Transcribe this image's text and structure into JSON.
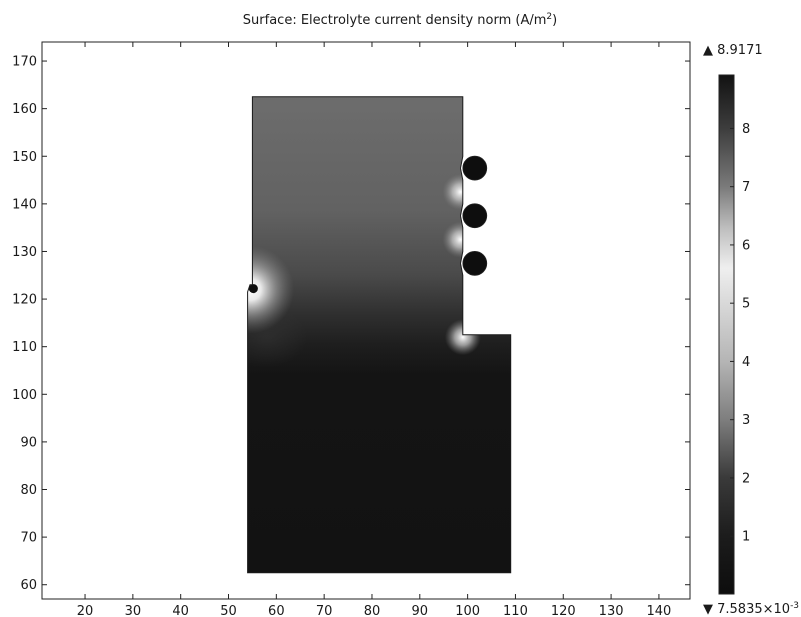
{
  "chart_data": {
    "type": "heatmap",
    "title": "Surface: Electrolyte current density norm (A/m",
    "title_sup": "2",
    "title_tail": ")",
    "x_ticks": [
      20,
      30,
      40,
      50,
      60,
      70,
      80,
      90,
      100,
      110,
      120,
      130,
      140
    ],
    "y_ticks": [
      60,
      70,
      80,
      90,
      100,
      110,
      120,
      130,
      140,
      150,
      160,
      170
    ],
    "xlim": [
      11,
      146.5
    ],
    "ylim": [
      57,
      174
    ],
    "grid": false,
    "colormap": "grayscale",
    "colorbar": {
      "range": [
        0.0075835,
        8.9171
      ],
      "ticks": [
        1,
        2,
        3,
        4,
        5,
        6,
        7,
        8
      ],
      "max_label": "8.9171",
      "min_label_mantissa": "7.5835×10",
      "min_label_exp": "-3",
      "stops": [
        {
          "value": 0.0,
          "color": "#0d0d0d"
        },
        {
          "value": 1.0,
          "color": "#1c1c1c"
        },
        {
          "value": 2.0,
          "color": "#3a3a3a"
        },
        {
          "value": 3.0,
          "color": "#7e7e7e"
        },
        {
          "value": 4.0,
          "color": "#b5b5b5"
        },
        {
          "value": 5.0,
          "color": "#d9d9d9"
        },
        {
          "value": 5.6,
          "color": "#efefef"
        },
        {
          "value": 6.3,
          "color": "#bdbdbd"
        },
        {
          "value": 7.0,
          "color": "#7a7a7a"
        },
        {
          "value": 8.0,
          "color": "#3d3d3d"
        },
        {
          "value": 8.9171,
          "color": "#121212"
        }
      ]
    },
    "geometry_outline": [
      [
        55,
        162.5
      ],
      [
        99,
        162.5
      ],
      [
        99,
        150
      ],
      [
        98.5,
        147.5
      ],
      [
        99,
        145
      ],
      [
        99,
        140
      ],
      [
        98.5,
        137.5
      ],
      [
        99,
        135
      ],
      [
        99,
        130
      ],
      [
        98.5,
        127.5
      ],
      [
        99,
        125
      ],
      [
        99,
        112.5
      ],
      [
        109,
        112.5
      ],
      [
        109,
        62.5
      ],
      [
        54,
        62.5
      ],
      [
        54,
        121.5
      ],
      [
        54.5,
        123
      ],
      [
        55,
        123
      ],
      [
        55,
        162.5
      ]
    ],
    "bulges": [
      {
        "x": 101.5,
        "y": 147.5,
        "r": 2.5
      },
      {
        "x": 101.5,
        "y": 137.5,
        "r": 2.5
      },
      {
        "x": 101.5,
        "y": 127.5,
        "r": 2.5
      }
    ],
    "hotspots": [
      {
        "x": 54.5,
        "y": 122,
        "value": 5.6
      },
      {
        "x": 99,
        "y": 112,
        "value": 5.0
      },
      {
        "x": 98.5,
        "y": 142.5,
        "value": 5.0
      },
      {
        "x": 98.5,
        "y": 132.5,
        "value": 5.0
      }
    ]
  }
}
